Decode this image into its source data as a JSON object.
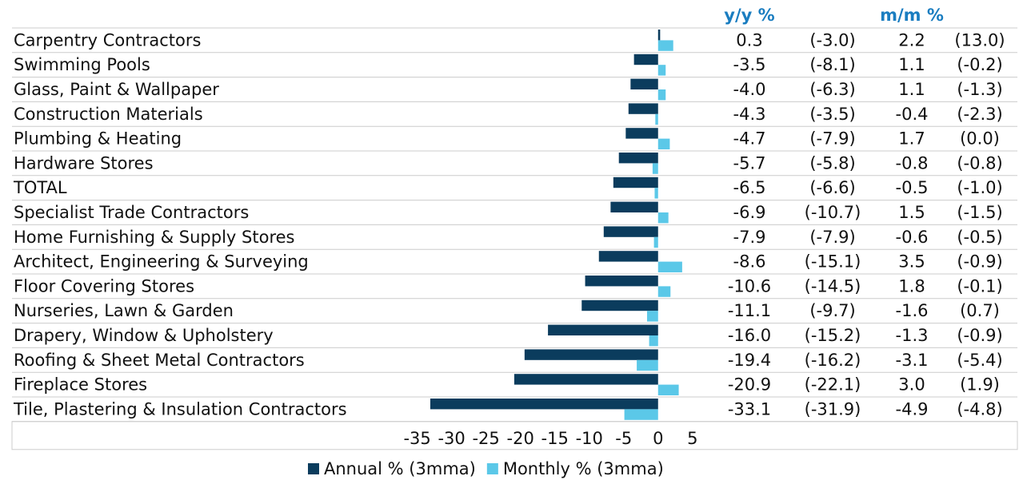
{
  "chart_data": {
    "type": "bar",
    "orientation": "horizontal",
    "categories": [
      "Carpentry Contractors",
      "Swimming Pools",
      "Glass, Paint & Wallpaper",
      "Construction Materials",
      "Plumbing & Heating",
      "Hardware Stores",
      "TOTAL",
      "Specialist Trade Contractors",
      "Home Furnishing & Supply Stores",
      "Architect, Engineering & Surveying",
      "Floor Covering Stores",
      "Nurseries, Lawn & Garden",
      "Drapery, Window & Upholstery",
      "Roofing & Sheet Metal Contractors",
      "Fireplace Stores",
      "Tile, Plastering & Insulation Contractors"
    ],
    "series": [
      {
        "name": "Annual % (3mma)",
        "column": "y/y %",
        "color": "#0b3c5d",
        "values": [
          0.3,
          -3.5,
          -4.0,
          -4.3,
          -4.7,
          -5.7,
          -6.5,
          -6.9,
          -7.9,
          -8.6,
          -10.6,
          -11.1,
          -16.0,
          -19.4,
          -20.9,
          -33.1
        ],
        "value_labels": [
          "0.3",
          "-3.5",
          "-4.0",
          "-4.3",
          "-4.7",
          "-5.7",
          "-6.5",
          "-6.9",
          "-7.9",
          "-8.6",
          "-10.6",
          "-11.1",
          "-16.0",
          "-19.4",
          "-20.9",
          "-33.1"
        ],
        "prev_values": [
          -3.0,
          -8.1,
          -6.3,
          -3.5,
          -7.9,
          -5.8,
          -6.6,
          -10.7,
          -7.9,
          -15.1,
          -14.5,
          -9.7,
          -15.2,
          -16.2,
          -22.1,
          -31.9
        ],
        "prev_labels": [
          "(-3.0)",
          "(-8.1)",
          "(-6.3)",
          "(-3.5)",
          "(-7.9)",
          "(-5.8)",
          "(-6.6)",
          "(-10.7)",
          "(-7.9)",
          "(-15.1)",
          "(-14.5)",
          "(-9.7)",
          "(-15.2)",
          "(-16.2)",
          "(-22.1)",
          "(-31.9)"
        ]
      },
      {
        "name": "Monthly % (3mma)",
        "column": "m/m %",
        "color": "#5bc8e8",
        "values": [
          2.2,
          1.1,
          1.1,
          -0.4,
          1.7,
          -0.8,
          -0.5,
          1.5,
          -0.6,
          3.5,
          1.8,
          -1.6,
          -1.3,
          -3.1,
          3.0,
          -4.9
        ],
        "value_labels": [
          "2.2",
          "1.1",
          "1.1",
          "-0.4",
          "1.7",
          "-0.8",
          "-0.5",
          "1.5",
          "-0.6",
          "3.5",
          "1.8",
          "-1.6",
          "-1.3",
          "-3.1",
          "3.0",
          "-4.9"
        ],
        "prev_values": [
          13.0,
          -0.2,
          -1.3,
          -2.3,
          0.0,
          -0.8,
          -1.0,
          -1.5,
          -0.5,
          -0.9,
          -0.1,
          0.7,
          -0.9,
          -5.4,
          1.9,
          -4.8
        ],
        "prev_labels": [
          "(13.0)",
          "(-0.2)",
          "(-1.3)",
          "(-2.3)",
          "(0.0)",
          "(-0.8)",
          "(-1.0)",
          "(-1.5)",
          "(-0.5)",
          "(-0.9)",
          "(-0.1)",
          "(0.7)",
          "(-0.9)",
          "(-5.4)",
          "(1.9)",
          "(-4.8)"
        ]
      }
    ],
    "xlim": [
      -36,
      7
    ],
    "xticks": [
      -35,
      -30,
      -25,
      -20,
      -15,
      -10,
      -5,
      0,
      5
    ],
    "legend": "bottom"
  }
}
